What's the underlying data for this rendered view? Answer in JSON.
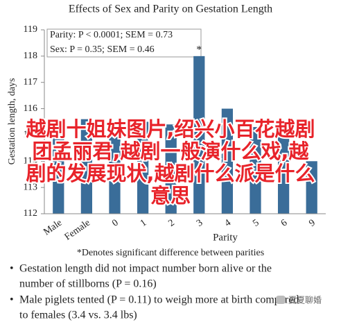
{
  "chart_data": {
    "type": "bar",
    "title": "Effects of Sex and Parity on Gestation Length",
    "y_label": "Gestation length, days",
    "x_label": "Parity",
    "categories": [
      "Male",
      "Female",
      "0",
      "1",
      "2",
      "3",
      "4",
      "5",
      "6",
      "9"
    ],
    "values": [
      115.3,
      115.6,
      115.0,
      115.5,
      115.4,
      118.0,
      116.0,
      115.3,
      115.5,
      114.0
    ],
    "color": "#3a6d99",
    "ylim": [
      112,
      119
    ],
    "yticks": [
      112,
      113,
      114,
      115,
      116,
      117,
      118,
      119
    ],
    "grid": false,
    "annotations": [
      "Parity: P < 0.0001; SEM = 0.73",
      "Sex: P = 0.35; SEM = 0.46"
    ],
    "marker": "*",
    "footnote": "*Denotes significant difference between parities"
  },
  "notes": [
    [
      "Gestation length did not impact number born alive or the",
      "number of stillborns (P = 0.16)"
    ],
    [
      "Male piglets tented (P = 0.11) to weigh more at birth compared",
      "to females (3.4 vs. 3.4 lbs)"
    ]
  ],
  "overlay_text": [
    "越剧十姐妹图片,绍兴小百花越剧",
    "团孟丽君,越剧一般演什么戏,越",
    "剧的发展现状,越剧什么派是什么",
    "意思"
  ],
  "watermark": "夏夏聊婚"
}
